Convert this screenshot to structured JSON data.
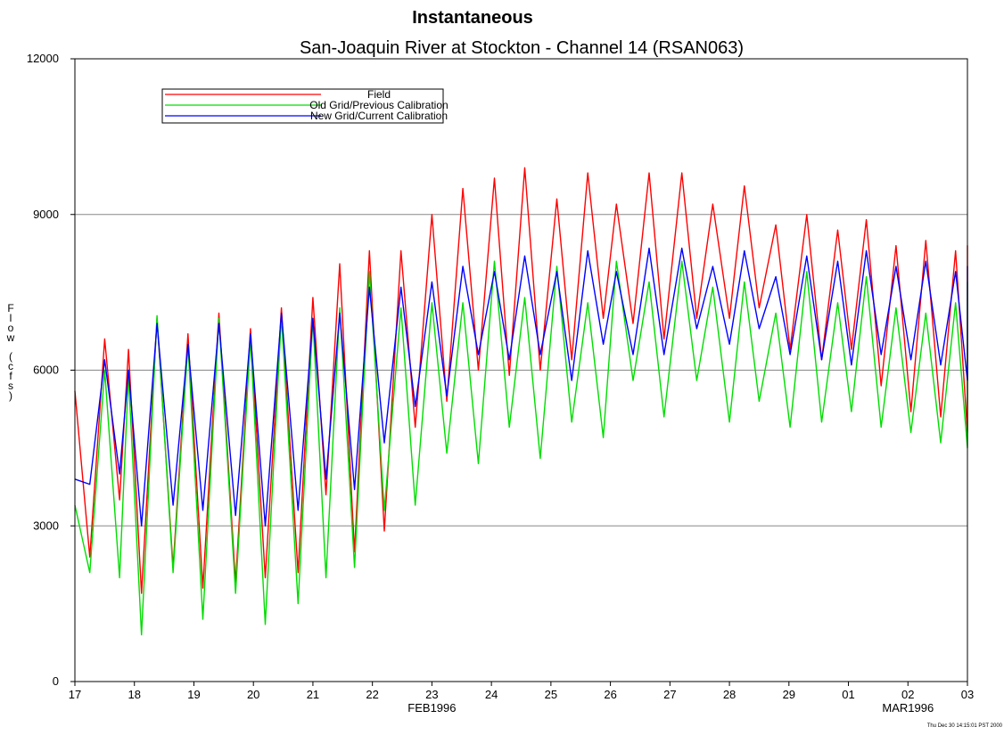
{
  "chart_data": {
    "type": "line",
    "title": "Instantaneous",
    "subtitle": "San-Joaquin River at Stockton - Channel 14 (RSAN063)",
    "ylabel": "Flow (cfs)",
    "xlabel": "",
    "x_unit": "days since 17 FEB1996",
    "x_ticks": [
      {
        "x": 0,
        "label": "17"
      },
      {
        "x": 1,
        "label": "18"
      },
      {
        "x": 2,
        "label": "19"
      },
      {
        "x": 3,
        "label": "20"
      },
      {
        "x": 4,
        "label": "21"
      },
      {
        "x": 5,
        "label": "22"
      },
      {
        "x": 6,
        "label": "23"
      },
      {
        "x": 7,
        "label": "24"
      },
      {
        "x": 8,
        "label": "25"
      },
      {
        "x": 9,
        "label": "26"
      },
      {
        "x": 10,
        "label": "27"
      },
      {
        "x": 11,
        "label": "28"
      },
      {
        "x": 12,
        "label": "29"
      },
      {
        "x": 13,
        "label": "01"
      },
      {
        "x": 14,
        "label": "02"
      },
      {
        "x": 15,
        "label": "03"
      }
    ],
    "x_sublabels": [
      {
        "x": 6,
        "label": "FEB1996"
      },
      {
        "x": 14,
        "label": "MAR1996"
      }
    ],
    "y_ticks": [
      0,
      3000,
      6000,
      9000,
      12000
    ],
    "xlim": [
      0,
      15
    ],
    "ylim": [
      0,
      12000
    ],
    "grid": "horizontal",
    "legend_position": "top-left",
    "timestamp": "Thu Dec 30 14:15:01 PST 2000",
    "series": [
      {
        "name": "Field",
        "color": "#ff0000",
        "points": [
          [
            0,
            5600
          ],
          [
            0.25,
            2400
          ],
          [
            0.5,
            6600
          ],
          [
            0.75,
            3500
          ],
          [
            0.9,
            6400
          ],
          [
            1.12,
            1700
          ],
          [
            1.38,
            7000
          ],
          [
            1.65,
            2200
          ],
          [
            1.9,
            6700
          ],
          [
            2.15,
            1800
          ],
          [
            2.42,
            7100
          ],
          [
            2.7,
            1900
          ],
          [
            2.95,
            6800
          ],
          [
            3.2,
            2000
          ],
          [
            3.47,
            7200
          ],
          [
            3.75,
            2100
          ],
          [
            4.0,
            7400
          ],
          [
            4.22,
            3600
          ],
          [
            4.45,
            8050
          ],
          [
            4.7,
            2500
          ],
          [
            4.95,
            8300
          ],
          [
            5.2,
            2900
          ],
          [
            5.48,
            8300
          ],
          [
            5.72,
            4900
          ],
          [
            6.0,
            9000
          ],
          [
            6.25,
            5400
          ],
          [
            6.52,
            9500
          ],
          [
            6.78,
            6000
          ],
          [
            7.05,
            9700
          ],
          [
            7.3,
            5900
          ],
          [
            7.56,
            9900
          ],
          [
            7.82,
            6000
          ],
          [
            8.1,
            9300
          ],
          [
            8.35,
            6200
          ],
          [
            8.62,
            9800
          ],
          [
            8.88,
            7000
          ],
          [
            9.1,
            9200
          ],
          [
            9.38,
            6900
          ],
          [
            9.65,
            9800
          ],
          [
            9.9,
            6600
          ],
          [
            10.2,
            9800
          ],
          [
            10.45,
            7000
          ],
          [
            10.72,
            9200
          ],
          [
            11.0,
            7000
          ],
          [
            11.25,
            9550
          ],
          [
            11.5,
            7200
          ],
          [
            11.78,
            8800
          ],
          [
            12.02,
            6400
          ],
          [
            12.3,
            9000
          ],
          [
            12.55,
            6200
          ],
          [
            12.82,
            8700
          ],
          [
            13.05,
            6400
          ],
          [
            13.3,
            8900
          ],
          [
            13.55,
            5700
          ],
          [
            13.8,
            8400
          ],
          [
            14.05,
            5200
          ],
          [
            14.3,
            8500
          ],
          [
            14.55,
            5100
          ],
          [
            14.8,
            8300
          ],
          [
            15.05,
            4800
          ],
          [
            15.3,
            8400
          ],
          [
            15.5,
            8150
          ]
        ]
      },
      {
        "name": "Old Grid/Previous Calibration",
        "color": "#00dd00",
        "points": [
          [
            0,
            3400
          ],
          [
            0.25,
            2100
          ],
          [
            0.5,
            6000
          ],
          [
            0.75,
            2000
          ],
          [
            0.9,
            5900
          ],
          [
            1.12,
            900
          ],
          [
            1.38,
            7050
          ],
          [
            1.65,
            2100
          ],
          [
            1.9,
            6500
          ],
          [
            2.15,
            1200
          ],
          [
            2.42,
            7000
          ],
          [
            2.7,
            1700
          ],
          [
            2.95,
            6600
          ],
          [
            3.2,
            1100
          ],
          [
            3.47,
            7050
          ],
          [
            3.75,
            1500
          ],
          [
            4.0,
            7000
          ],
          [
            4.22,
            2000
          ],
          [
            4.45,
            7200
          ],
          [
            4.7,
            2200
          ],
          [
            4.95,
            7900
          ],
          [
            5.2,
            3300
          ],
          [
            5.48,
            7200
          ],
          [
            5.72,
            3400
          ],
          [
            6.0,
            7300
          ],
          [
            6.25,
            4400
          ],
          [
            6.52,
            7300
          ],
          [
            6.78,
            4200
          ],
          [
            7.05,
            8100
          ],
          [
            7.3,
            4900
          ],
          [
            7.56,
            7400
          ],
          [
            7.82,
            4300
          ],
          [
            8.1,
            8000
          ],
          [
            8.35,
            5000
          ],
          [
            8.62,
            7300
          ],
          [
            8.88,
            4700
          ],
          [
            9.1,
            8100
          ],
          [
            9.38,
            5800
          ],
          [
            9.65,
            7700
          ],
          [
            9.9,
            5100
          ],
          [
            10.2,
            8100
          ],
          [
            10.45,
            5800
          ],
          [
            10.72,
            7600
          ],
          [
            11.0,
            5000
          ],
          [
            11.25,
            7700
          ],
          [
            11.5,
            5400
          ],
          [
            11.78,
            7100
          ],
          [
            12.02,
            4900
          ],
          [
            12.3,
            7900
          ],
          [
            12.55,
            5000
          ],
          [
            12.82,
            7300
          ],
          [
            13.05,
            5200
          ],
          [
            13.3,
            7800
          ],
          [
            13.55,
            4900
          ],
          [
            13.8,
            7200
          ],
          [
            14.05,
            4800
          ],
          [
            14.3,
            7100
          ],
          [
            14.55,
            4600
          ],
          [
            14.8,
            7300
          ],
          [
            15.05,
            4500
          ],
          [
            15.3,
            7700
          ],
          [
            15.5,
            7000
          ]
        ]
      },
      {
        "name": "New Grid/Current Calibration",
        "color": "#0000ff",
        "points": [
          [
            0,
            3900
          ],
          [
            0.25,
            3800
          ],
          [
            0.5,
            6200
          ],
          [
            0.75,
            4000
          ],
          [
            0.9,
            6000
          ],
          [
            1.12,
            3000
          ],
          [
            1.38,
            6900
          ],
          [
            1.65,
            3400
          ],
          [
            1.9,
            6500
          ],
          [
            2.15,
            3300
          ],
          [
            2.42,
            6900
          ],
          [
            2.7,
            3200
          ],
          [
            2.95,
            6700
          ],
          [
            3.2,
            3000
          ],
          [
            3.47,
            7100
          ],
          [
            3.75,
            3300
          ],
          [
            4.0,
            7000
          ],
          [
            4.22,
            3900
          ],
          [
            4.45,
            7100
          ],
          [
            4.7,
            3700
          ],
          [
            4.95,
            7600
          ],
          [
            5.2,
            4600
          ],
          [
            5.48,
            7600
          ],
          [
            5.72,
            5300
          ],
          [
            6.0,
            7700
          ],
          [
            6.25,
            5500
          ],
          [
            6.52,
            8000
          ],
          [
            6.78,
            6300
          ],
          [
            7.05,
            7900
          ],
          [
            7.3,
            6200
          ],
          [
            7.56,
            8200
          ],
          [
            7.82,
            6300
          ],
          [
            8.1,
            7900
          ],
          [
            8.35,
            5800
          ],
          [
            8.62,
            8300
          ],
          [
            8.88,
            6500
          ],
          [
            9.1,
            7900
          ],
          [
            9.38,
            6300
          ],
          [
            9.65,
            8350
          ],
          [
            9.9,
            6300
          ],
          [
            10.2,
            8350
          ],
          [
            10.45,
            6800
          ],
          [
            10.72,
            8000
          ],
          [
            11.0,
            6500
          ],
          [
            11.25,
            8300
          ],
          [
            11.5,
            6800
          ],
          [
            11.78,
            7800
          ],
          [
            12.02,
            6300
          ],
          [
            12.3,
            8200
          ],
          [
            12.55,
            6200
          ],
          [
            12.82,
            8100
          ],
          [
            13.05,
            6100
          ],
          [
            13.3,
            8300
          ],
          [
            13.55,
            6300
          ],
          [
            13.8,
            8000
          ],
          [
            14.05,
            6200
          ],
          [
            14.3,
            8100
          ],
          [
            14.55,
            6100
          ],
          [
            14.8,
            7900
          ],
          [
            15.05,
            5800
          ],
          [
            15.3,
            8000
          ],
          [
            15.5,
            7700
          ]
        ]
      }
    ]
  }
}
